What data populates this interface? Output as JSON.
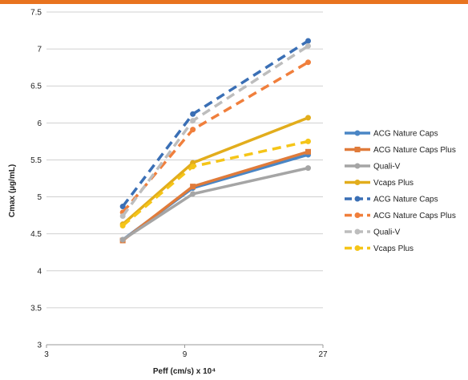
{
  "chart_data": {
    "type": "line",
    "title": "",
    "xlabel": "Peff (cm/s) x 10⁴",
    "ylabel": "Cmax (µg/mL)",
    "x_scale": "log",
    "x_ticks": [
      3,
      9,
      27
    ],
    "x_tick_labels": [
      "3",
      "9",
      "27"
    ],
    "xlim": [
      3,
      27
    ],
    "ylim": [
      3,
      7.5
    ],
    "y_ticks": [
      3,
      3.5,
      4,
      4.5,
      5,
      5.5,
      6,
      6.5,
      7,
      7.5
    ],
    "y_tick_labels": [
      "3",
      "3.5",
      "4",
      "4.5",
      "5",
      "5.5",
      "6",
      "6.5",
      "7",
      "7.5"
    ],
    "grid": "horizontal",
    "legend_position": "right",
    "x": [
      5.5,
      9.6,
      24
    ],
    "series": [
      {
        "name": "ACG Nature Caps",
        "values": [
          4.42,
          5.12,
          5.57
        ],
        "color": "#4a86c5",
        "dashed": false,
        "marker": "circle"
      },
      {
        "name": "ACG Nature Caps Plus",
        "values": [
          4.41,
          5.14,
          5.61
        ],
        "color": "#e07b3a",
        "dashed": false,
        "marker": "square"
      },
      {
        "name": "Quali-V",
        "values": [
          4.42,
          5.04,
          5.39
        ],
        "color": "#a5a5a5",
        "dashed": false,
        "marker": "circle"
      },
      {
        "name": "Vcaps Plus",
        "values": [
          4.63,
          5.46,
          6.07
        ],
        "color": "#e2ad1c",
        "dashed": false,
        "marker": "circle"
      },
      {
        "name": "ACG Nature Caps",
        "values": [
          4.87,
          6.12,
          7.11
        ],
        "color": "#3a6fb5",
        "dashed": true,
        "marker": "circle"
      },
      {
        "name": "ACG Nature Caps Plus",
        "values": [
          4.79,
          5.91,
          6.82
        ],
        "color": "#f07f3c",
        "dashed": true,
        "marker": "circle"
      },
      {
        "name": "Quali-V",
        "values": [
          4.74,
          6.03,
          7.04
        ],
        "color": "#bdbdbd",
        "dashed": true,
        "marker": "circle"
      },
      {
        "name": "Vcaps Plus",
        "values": [
          4.61,
          5.41,
          5.75
        ],
        "color": "#f5c518",
        "dashed": true,
        "marker": "circle"
      }
    ]
  }
}
